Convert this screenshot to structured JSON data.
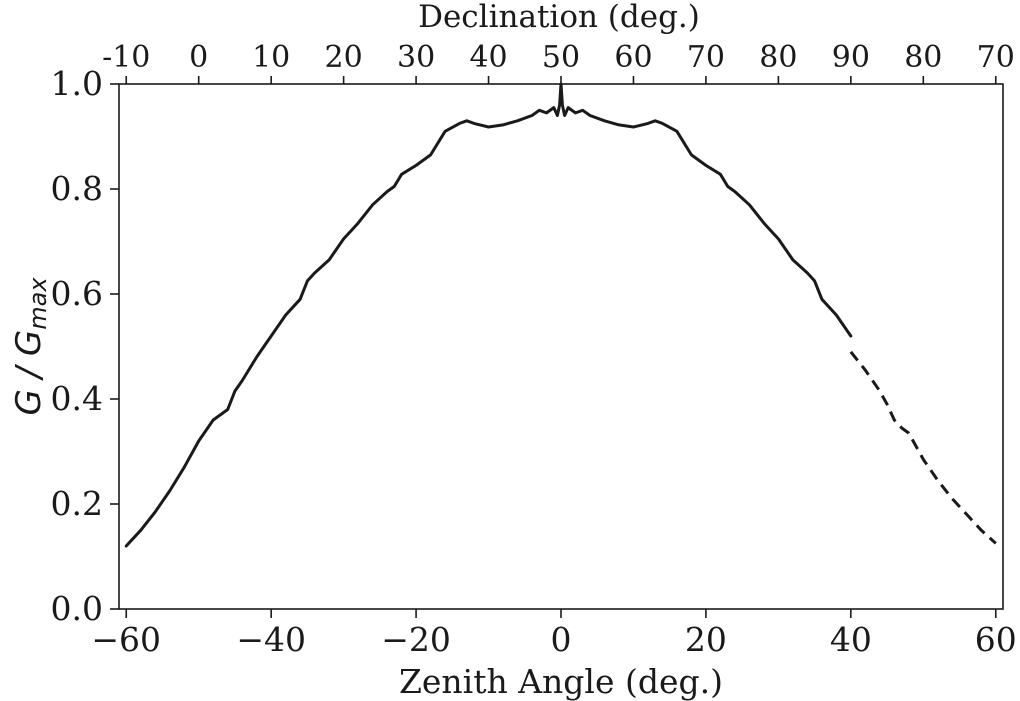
{
  "chart_data": {
    "type": "line",
    "xlabel": "Zenith Angle (deg.)",
    "x2label": "Declination (deg.)",
    "ylabel": "G / G_max",
    "ylabel_parts": {
      "g": "G",
      "slash": " / ",
      "gsub_base": "G",
      "gsub": "max"
    },
    "xlim": [
      -61,
      61
    ],
    "ylim": [
      0.0,
      1.0
    ],
    "xticks": [
      -60,
      -40,
      -20,
      0,
      20,
      40,
      60
    ],
    "xticklabels": [
      "−60",
      "−40",
      "−20",
      "0",
      "20",
      "40",
      "60"
    ],
    "yticks": [
      0.0,
      0.2,
      0.4,
      0.6,
      0.8,
      1.0
    ],
    "yticklabels": [
      "0.0",
      "0.2",
      "0.4",
      "0.6",
      "0.8",
      "1.0"
    ],
    "x2ticks": [
      -60,
      -50,
      -40,
      -30,
      -20,
      -10,
      0,
      10,
      20,
      30,
      40,
      50,
      60
    ],
    "x2ticklabels": [
      "-10",
      "0",
      "10",
      "20",
      "30",
      "40",
      "50",
      "60",
      "70",
      "80",
      "90",
      "80",
      "70"
    ],
    "grid": false,
    "series": [
      {
        "style": "solid",
        "color": "#1a1a1a",
        "x": [
          -60,
          -58,
          -56,
          -54,
          -52,
          -50,
          -48,
          -46,
          -45,
          -44,
          -42,
          -41,
          -40,
          -38,
          -36,
          -35,
          -34,
          -32,
          -30,
          -29,
          -28,
          -26,
          -24,
          -23,
          -22,
          -20,
          -18,
          -16,
          -14,
          -13,
          -12,
          -10,
          -8,
          -6,
          -4,
          -3,
          -2,
          -1,
          -0.5,
          -0.2,
          0,
          0.2,
          0.5,
          1,
          2,
          3,
          4,
          6,
          8,
          10,
          12,
          13,
          14,
          16,
          18,
          20,
          22,
          23,
          24,
          26,
          28,
          29,
          30,
          32,
          34,
          35,
          36,
          38,
          40
        ],
        "y": [
          0.12,
          0.15,
          0.185,
          0.225,
          0.27,
          0.32,
          0.36,
          0.38,
          0.415,
          0.435,
          0.48,
          0.5,
          0.52,
          0.56,
          0.59,
          0.625,
          0.64,
          0.665,
          0.705,
          0.72,
          0.735,
          0.77,
          0.795,
          0.805,
          0.828,
          0.845,
          0.865,
          0.91,
          0.925,
          0.93,
          0.925,
          0.918,
          0.922,
          0.93,
          0.94,
          0.95,
          0.945,
          0.955,
          0.94,
          0.96,
          1.0,
          0.96,
          0.94,
          0.955,
          0.945,
          0.95,
          0.94,
          0.93,
          0.922,
          0.918,
          0.925,
          0.93,
          0.925,
          0.91,
          0.865,
          0.845,
          0.828,
          0.805,
          0.795,
          0.77,
          0.735,
          0.72,
          0.705,
          0.665,
          0.64,
          0.625,
          0.59,
          0.56,
          0.52
        ]
      },
      {
        "style": "dashed",
        "color": "#1a1a1a",
        "x": [
          40,
          42,
          44,
          45,
          46,
          47,
          48,
          50,
          52,
          54,
          56,
          58,
          60
        ],
        "y": [
          0.49,
          0.455,
          0.415,
          0.39,
          0.36,
          0.345,
          0.335,
          0.285,
          0.245,
          0.21,
          0.18,
          0.15,
          0.125
        ]
      }
    ]
  }
}
